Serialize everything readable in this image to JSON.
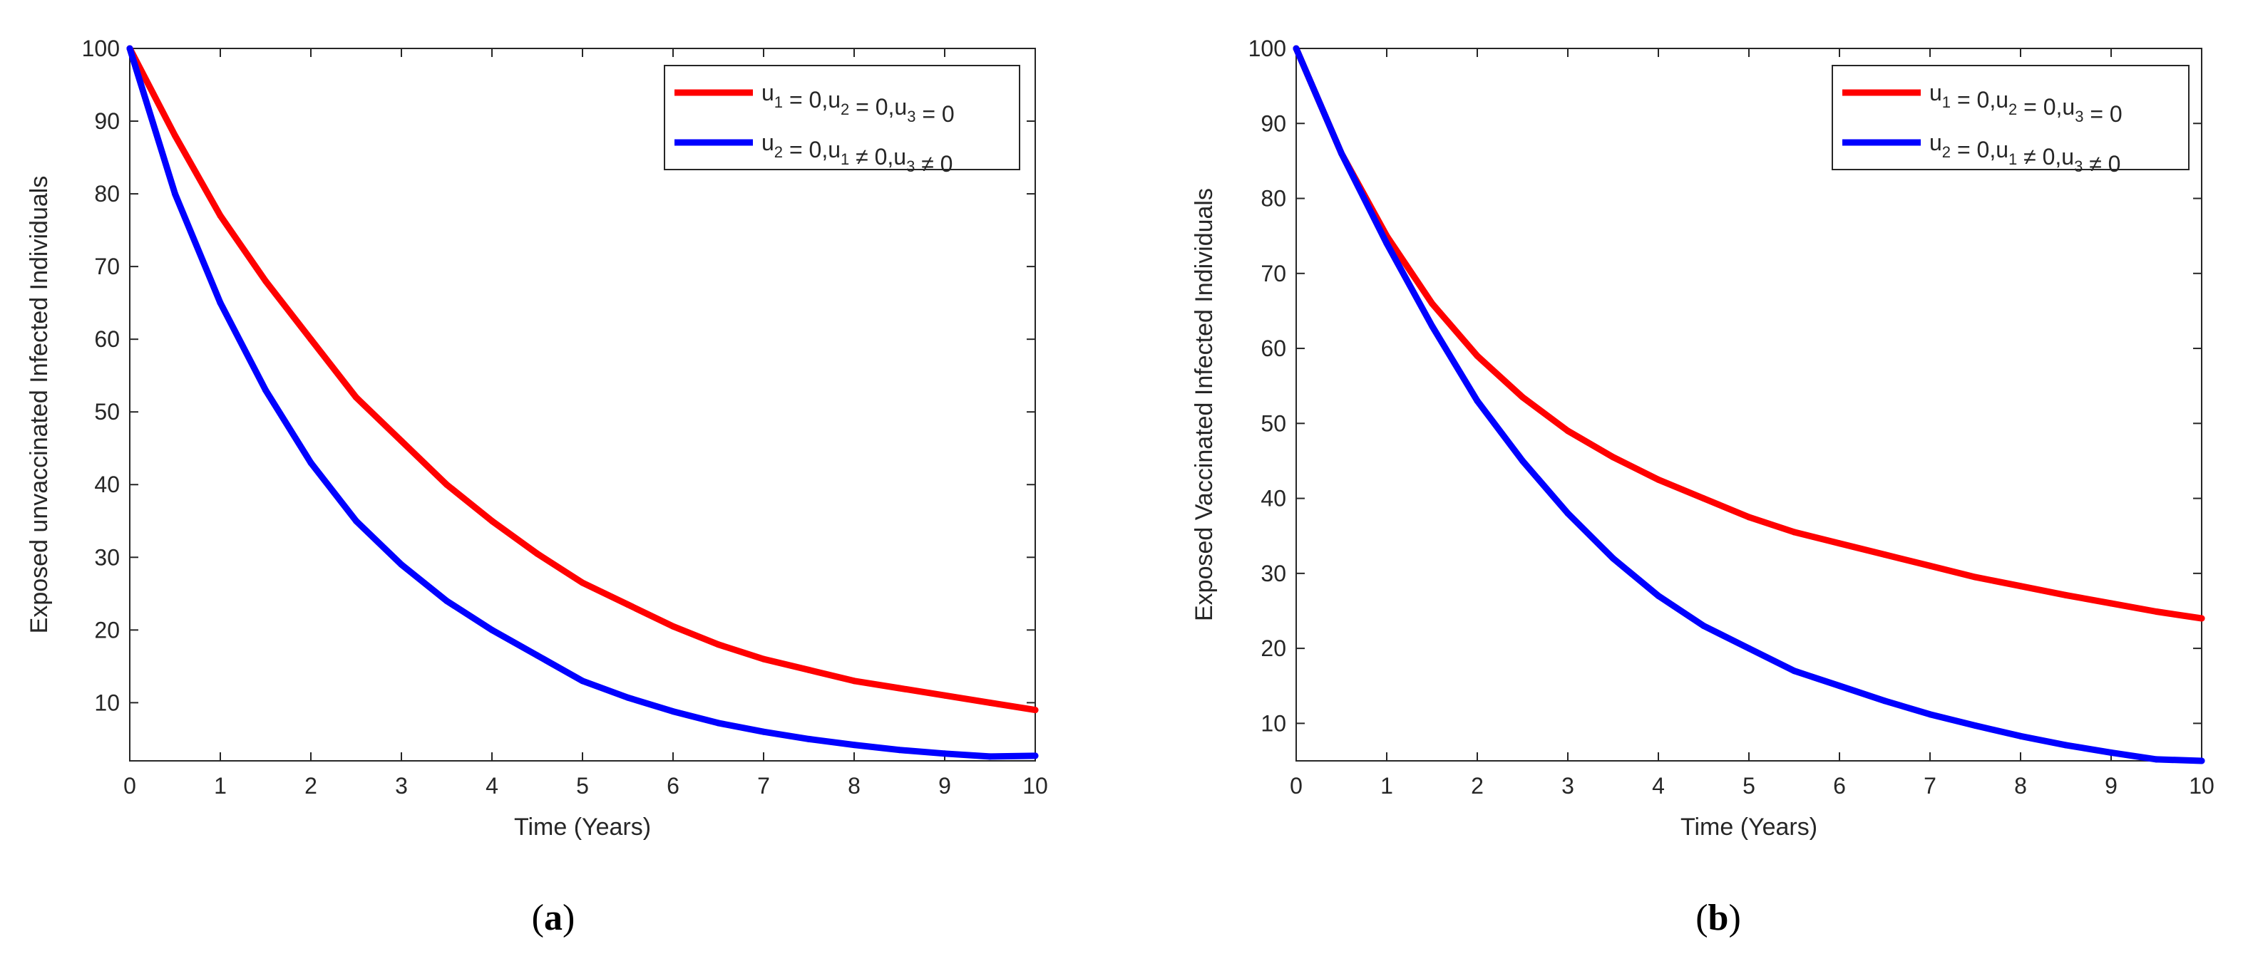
{
  "chart_data": [
    {
      "type": "line",
      "panel": "(a)",
      "panel_parts": [
        "(",
        "a",
        ")"
      ],
      "xlabel": "Time (Years)",
      "ylabel": "Exposed unvaccinated Infected Individuals",
      "xlim": [
        0,
        10
      ],
      "ylim": [
        2,
        100
      ],
      "xticks": [
        "0",
        "1",
        "2",
        "3",
        "4",
        "5",
        "6",
        "7",
        "8",
        "9",
        "10"
      ],
      "yticks": [
        "10",
        "20",
        "30",
        "40",
        "50",
        "60",
        "70",
        "80",
        "90",
        "100"
      ],
      "grid": false,
      "legend_position": "top-right",
      "x": [
        0,
        0.5,
        1,
        1.5,
        2,
        2.5,
        3,
        3.5,
        4,
        4.5,
        5,
        5.5,
        6,
        6.5,
        7,
        7.5,
        8,
        8.5,
        9,
        9.5,
        10
      ],
      "series": [
        {
          "legend_main": [
            "u",
            " = 0,u",
            " = 0,u",
            " = 0"
          ],
          "legend_subs": [
            "1",
            "2",
            "3"
          ],
          "color": "#ff0000",
          "values": [
            100,
            88,
            77,
            68,
            60,
            52,
            46,
            40,
            35,
            30.5,
            26.5,
            23.5,
            20.5,
            18,
            16,
            14.5,
            13,
            12,
            11,
            10,
            9
          ]
        },
        {
          "legend_main": [
            "u",
            " = 0,u",
            " ≠ 0,u",
            " ≠ 0"
          ],
          "legend_subs": [
            "2",
            "1",
            "3"
          ],
          "color": "#0000ff",
          "values": [
            100,
            80,
            65,
            53,
            43,
            35,
            29,
            24,
            20,
            16.5,
            13,
            10.7,
            8.8,
            7.2,
            6,
            5,
            4.2,
            3.5,
            3,
            2.6,
            2.7
          ]
        }
      ]
    },
    {
      "type": "line",
      "panel": "(b)",
      "panel_parts": [
        "(",
        "b",
        ")"
      ],
      "xlabel": "Time (Years)",
      "ylabel": "Exposed Vaccinated Infected Individuals",
      "xlim": [
        0,
        10
      ],
      "ylim": [
        5,
        100
      ],
      "xticks": [
        "0",
        "1",
        "2",
        "3",
        "4",
        "5",
        "6",
        "7",
        "8",
        "9",
        "10"
      ],
      "yticks": [
        "10",
        "20",
        "30",
        "40",
        "50",
        "60",
        "70",
        "80",
        "90",
        "100"
      ],
      "grid": false,
      "legend_position": "top-right",
      "x": [
        0,
        0.5,
        1,
        1.5,
        2,
        2.5,
        3,
        3.5,
        4,
        4.5,
        5,
        5.5,
        6,
        6.5,
        7,
        7.5,
        8,
        8.5,
        9,
        9.5,
        10
      ],
      "series": [
        {
          "legend_main": [
            "u",
            " = 0,u",
            " = 0,u",
            " = 0"
          ],
          "legend_subs": [
            "1",
            "2",
            "3"
          ],
          "color": "#ff0000",
          "values": [
            100,
            86,
            75,
            66,
            59,
            53.5,
            49,
            45.5,
            42.5,
            40,
            37.5,
            35.5,
            34,
            32.5,
            31,
            29.5,
            28.3,
            27.1,
            26,
            24.9,
            24
          ]
        },
        {
          "legend_main": [
            "u",
            " = 0,u",
            " ≠ 0,u",
            " ≠ 0"
          ],
          "legend_subs": [
            "2",
            "1",
            "3"
          ],
          "color": "#0000ff",
          "values": [
            100,
            86,
            74,
            63,
            53,
            45,
            38,
            32,
            27,
            23,
            20,
            17,
            15,
            13,
            11.2,
            9.7,
            8.3,
            7.1,
            6.1,
            5.2,
            5
          ]
        }
      ]
    }
  ]
}
